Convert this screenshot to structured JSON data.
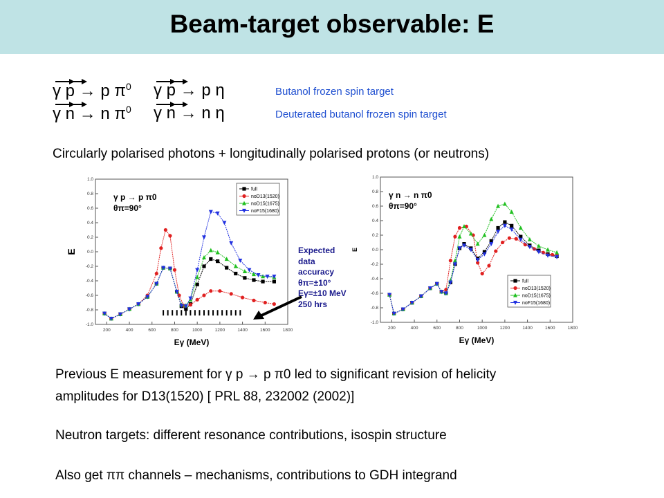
{
  "slide": {
    "title": "Beam-target observable: E"
  },
  "reactions": [
    {
      "left": "γ p → p π",
      "left_sup": "0",
      "right": "γ p → p η",
      "target": "Butanol frozen spin target"
    },
    {
      "left": "γ n → n π",
      "left_sup": "0",
      "right": "γ n → n η",
      "target": "Deuterated butanol frozen spin target"
    }
  ],
  "intro": "Circularly polarised photons + longitudinally  polarised protons (or neutrons)",
  "annotation": {
    "line1": "Expected",
    "line2": "data",
    "line3": "accuracy",
    "line4": "θπ=±10°",
    "line5": "Eγ=±10 MeV",
    "line6": "250 hrs"
  },
  "bullets": {
    "p1_line1": "Previous E measurement for γ p → p π0  led to significant revision of helicity",
    "p1_line2": "amplitudes for D13(1520)    [ PRL 88, 232002 (2002)]",
    "p2": "Neutron targets: different resonance contributions, isospin structure",
    "p3": "Also get ππ channels – mechanisms, contributions to GDH integrand"
  },
  "chart_data": [
    {
      "type": "line",
      "reaction_label": "γ p → p π0",
      "angle_label": "θπ=90°",
      "xlabel": "Eγ (MeV)",
      "ylabel": "E",
      "xlim": [
        100,
        1800
      ],
      "ylim": [
        -1.0,
        1.0
      ],
      "xticks": [
        200,
        400,
        600,
        800,
        1000,
        1200,
        1400,
        1600,
        1800
      ],
      "yticks": [
        -1.0,
        -0.8,
        -0.6,
        -0.4,
        -0.2,
        0.0,
        0.2,
        0.4,
        0.6,
        0.8,
        1.0
      ],
      "legend": "top-right",
      "expected_points_x": [
        700,
        740,
        780,
        820,
        860,
        900,
        940,
        980,
        1020,
        1060,
        1100,
        1140,
        1180,
        1220,
        1260,
        1300,
        1340,
        1380
      ],
      "expected_points_y": -0.84,
      "series": [
        {
          "name": "full",
          "color": "#000000",
          "marker": "square",
          "x": [
            180,
            240,
            320,
            400,
            480,
            560,
            640,
            700,
            760,
            820,
            860,
            900,
            940,
            1000,
            1060,
            1120,
            1180,
            1260,
            1340,
            1420,
            1500,
            1580,
            1680
          ],
          "y": [
            -0.85,
            -0.92,
            -0.86,
            -0.79,
            -0.72,
            -0.62,
            -0.44,
            -0.22,
            -0.23,
            -0.55,
            -0.75,
            -0.79,
            -0.72,
            -0.45,
            -0.2,
            -0.1,
            -0.13,
            -0.22,
            -0.3,
            -0.36,
            -0.39,
            -0.41,
            -0.41
          ]
        },
        {
          "name": "noD13(1520)",
          "color": "#e02020",
          "marker": "circle",
          "x": [
            180,
            240,
            320,
            400,
            480,
            560,
            640,
            680,
            720,
            760,
            800,
            840,
            880,
            940,
            1000,
            1060,
            1120,
            1200,
            1300,
            1400,
            1500,
            1600,
            1680
          ],
          "y": [
            -0.85,
            -0.92,
            -0.86,
            -0.79,
            -0.72,
            -0.6,
            -0.3,
            0.05,
            0.3,
            0.22,
            -0.25,
            -0.6,
            -0.74,
            -0.73,
            -0.66,
            -0.6,
            -0.54,
            -0.54,
            -0.58,
            -0.63,
            -0.67,
            -0.7,
            -0.72
          ]
        },
        {
          "name": "noD15(1675)",
          "color": "#20c020",
          "marker": "triangle-up",
          "x": [
            180,
            240,
            320,
            400,
            480,
            560,
            640,
            700,
            760,
            820,
            860,
            900,
            940,
            1000,
            1060,
            1120,
            1180,
            1260,
            1340,
            1420,
            1500,
            1580,
            1680
          ],
          "y": [
            -0.85,
            -0.92,
            -0.86,
            -0.79,
            -0.72,
            -0.62,
            -0.44,
            -0.22,
            -0.23,
            -0.55,
            -0.73,
            -0.74,
            -0.66,
            -0.35,
            -0.08,
            0.02,
            -0.01,
            -0.1,
            -0.2,
            -0.27,
            -0.31,
            -0.34,
            -0.35
          ]
        },
        {
          "name": "noF15(1680)",
          "color": "#2030e0",
          "marker": "triangle-down",
          "x": [
            180,
            240,
            320,
            400,
            480,
            560,
            640,
            700,
            760,
            820,
            860,
            900,
            940,
            1000,
            1060,
            1120,
            1180,
            1240,
            1300,
            1380,
            1460,
            1540,
            1620,
            1680
          ],
          "y": [
            -0.85,
            -0.92,
            -0.86,
            -0.79,
            -0.72,
            -0.62,
            -0.44,
            -0.22,
            -0.23,
            -0.55,
            -0.74,
            -0.75,
            -0.64,
            -0.25,
            0.2,
            0.55,
            0.53,
            0.4,
            0.12,
            -0.12,
            -0.25,
            -0.32,
            -0.34,
            -0.34
          ]
        }
      ]
    },
    {
      "type": "line",
      "reaction_label": "γ n → n π0",
      "angle_label": "θπ=90°",
      "xlabel": "Eγ (MeV)",
      "ylabel": "E",
      "xlim": [
        100,
        1800
      ],
      "ylim": [
        -1.0,
        1.0
      ],
      "xticks": [
        200,
        400,
        600,
        800,
        1000,
        1200,
        1400,
        1600,
        1800
      ],
      "yticks": [
        -1.0,
        -0.8,
        -0.6,
        -0.4,
        -0.2,
        0.0,
        0.2,
        0.4,
        0.6,
        0.8,
        1.0
      ],
      "legend": "bottom-right",
      "series": [
        {
          "name": "full",
          "color": "#000000",
          "marker": "square",
          "x": [
            180,
            220,
            300,
            380,
            460,
            540,
            600,
            640,
            680,
            720,
            760,
            800,
            840,
            900,
            960,
            1020,
            1080,
            1140,
            1200,
            1260,
            1340,
            1420,
            1500,
            1580,
            1660
          ],
          "y": [
            -0.62,
            -0.88,
            -0.82,
            -0.73,
            -0.64,
            -0.53,
            -0.47,
            -0.58,
            -0.6,
            -0.45,
            -0.2,
            0.02,
            0.08,
            0.02,
            -0.12,
            -0.03,
            0.12,
            0.3,
            0.38,
            0.33,
            0.18,
            0.06,
            -0.01,
            -0.06,
            -0.09
          ]
        },
        {
          "name": "noD13(1520)",
          "color": "#e02020",
          "marker": "circle",
          "x": [
            180,
            220,
            300,
            380,
            460,
            540,
            600,
            640,
            680,
            720,
            760,
            800,
            860,
            920,
            960,
            1000,
            1060,
            1120,
            1180,
            1240,
            1300,
            1380,
            1460,
            1540,
            1620,
            1660
          ],
          "y": [
            -0.62,
            -0.88,
            -0.82,
            -0.73,
            -0.64,
            -0.53,
            -0.47,
            -0.58,
            -0.55,
            -0.15,
            0.18,
            0.3,
            0.32,
            0.2,
            -0.18,
            -0.33,
            -0.22,
            -0.02,
            0.1,
            0.16,
            0.15,
            0.07,
            0.01,
            -0.04,
            -0.07,
            -0.08
          ]
        },
        {
          "name": "noD15(1675)",
          "color": "#20c020",
          "marker": "triangle-up",
          "x": [
            180,
            220,
            300,
            380,
            460,
            540,
            600,
            640,
            680,
            720,
            760,
            800,
            840,
            900,
            960,
            1020,
            1080,
            1140,
            1200,
            1260,
            1340,
            1420,
            1500,
            1580,
            1660
          ],
          "y": [
            -0.62,
            -0.88,
            -0.82,
            -0.73,
            -0.64,
            -0.53,
            -0.47,
            -0.58,
            -0.6,
            -0.42,
            -0.15,
            0.18,
            0.32,
            0.22,
            0.08,
            0.2,
            0.42,
            0.6,
            0.63,
            0.52,
            0.3,
            0.14,
            0.05,
            0.0,
            -0.04
          ]
        },
        {
          "name": "noF15(1680)",
          "color": "#2030e0",
          "marker": "triangle-down",
          "x": [
            180,
            220,
            300,
            380,
            460,
            540,
            600,
            640,
            680,
            720,
            760,
            800,
            840,
            900,
            960,
            1020,
            1080,
            1140,
            1200,
            1260,
            1340,
            1420,
            1500,
            1580,
            1660
          ],
          "y": [
            -0.62,
            -0.88,
            -0.82,
            -0.73,
            -0.64,
            -0.53,
            -0.47,
            -0.58,
            -0.6,
            -0.45,
            -0.2,
            0.02,
            0.06,
            0.0,
            -0.14,
            -0.06,
            0.08,
            0.25,
            0.33,
            0.28,
            0.14,
            0.04,
            -0.03,
            -0.08,
            -0.1
          ]
        }
      ]
    }
  ]
}
